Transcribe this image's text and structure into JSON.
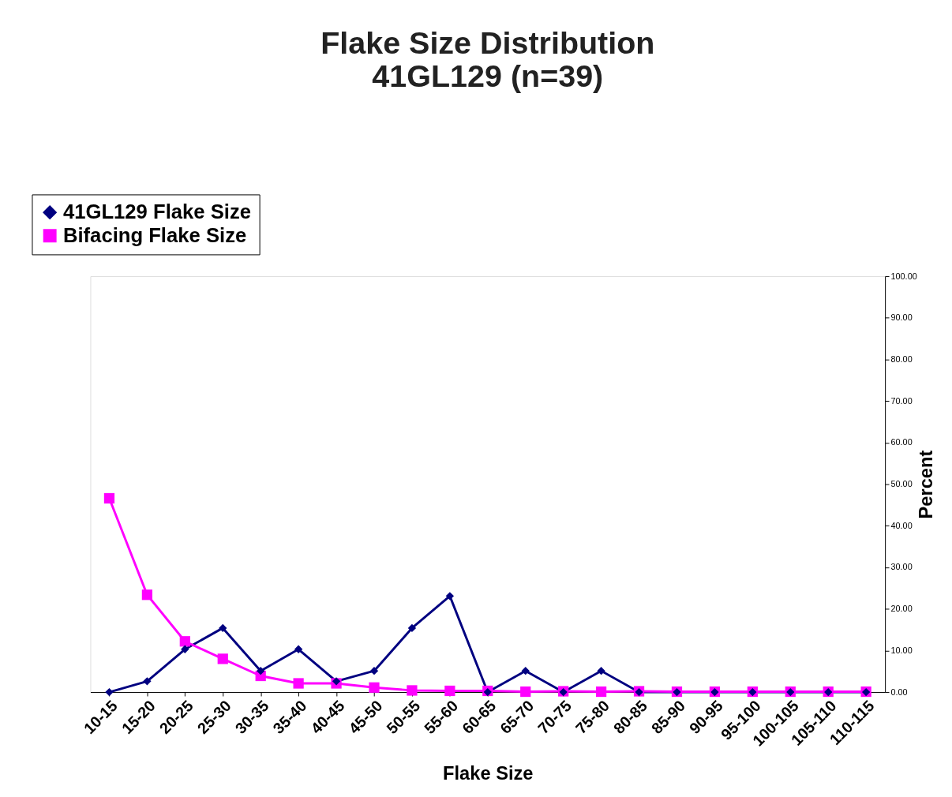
{
  "chart_data": {
    "type": "line",
    "title": [
      "Flake Size Distribution",
      "41GL129 (n=39)"
    ],
    "xlabel": "Flake Size",
    "ylabel": "Percent",
    "categories": [
      "10-15",
      "15-20",
      "20-25",
      "25-30",
      "30-35",
      "35-40",
      "40-45",
      "45-50",
      "50-55",
      "55-60",
      "60-65",
      "65-70",
      "70-75",
      "75-80",
      "80-85",
      "85-90",
      "90-95",
      "95-100",
      "100-105",
      "105-110",
      "110-115"
    ],
    "series": [
      {
        "name": "41GL129 Flake Size",
        "color": "#000080",
        "marker": "diamond",
        "values": [
          0,
          2.6,
          10.3,
          15.4,
          5.1,
          10.3,
          2.6,
          5.1,
          15.4,
          23.1,
          0,
          5.1,
          0,
          5.1,
          0,
          0,
          0,
          0,
          0,
          0,
          0
        ]
      },
      {
        "name": "Bifacing Flake Size",
        "color": "#ff00ff",
        "marker": "square",
        "values": [
          46.6,
          23.4,
          12.2,
          8.0,
          3.9,
          2.1,
          2.1,
          1.1,
          0.4,
          0.3,
          0.3,
          0.1,
          0.2,
          0.1,
          0.2,
          0.1,
          0.1,
          0.1,
          0.1,
          0.1,
          0.1
        ]
      }
    ],
    "ylim": [
      0,
      100
    ],
    "yticks": [
      {
        "value": 0,
        "label": "0.00"
      },
      {
        "value": 10,
        "label": "10.00"
      },
      {
        "value": 20,
        "label": "20.00"
      },
      {
        "value": 30,
        "label": "30.00"
      },
      {
        "value": 40,
        "label": "40.00"
      },
      {
        "value": 50,
        "label": "50.00"
      },
      {
        "value": 60,
        "label": "60.00"
      },
      {
        "value": 70,
        "label": "70.00"
      },
      {
        "value": 80,
        "label": "80.00"
      },
      {
        "value": 90,
        "label": "90.00"
      },
      {
        "value": 100,
        "label": "100.00"
      }
    ],
    "legend": "top left",
    "grid": false
  }
}
